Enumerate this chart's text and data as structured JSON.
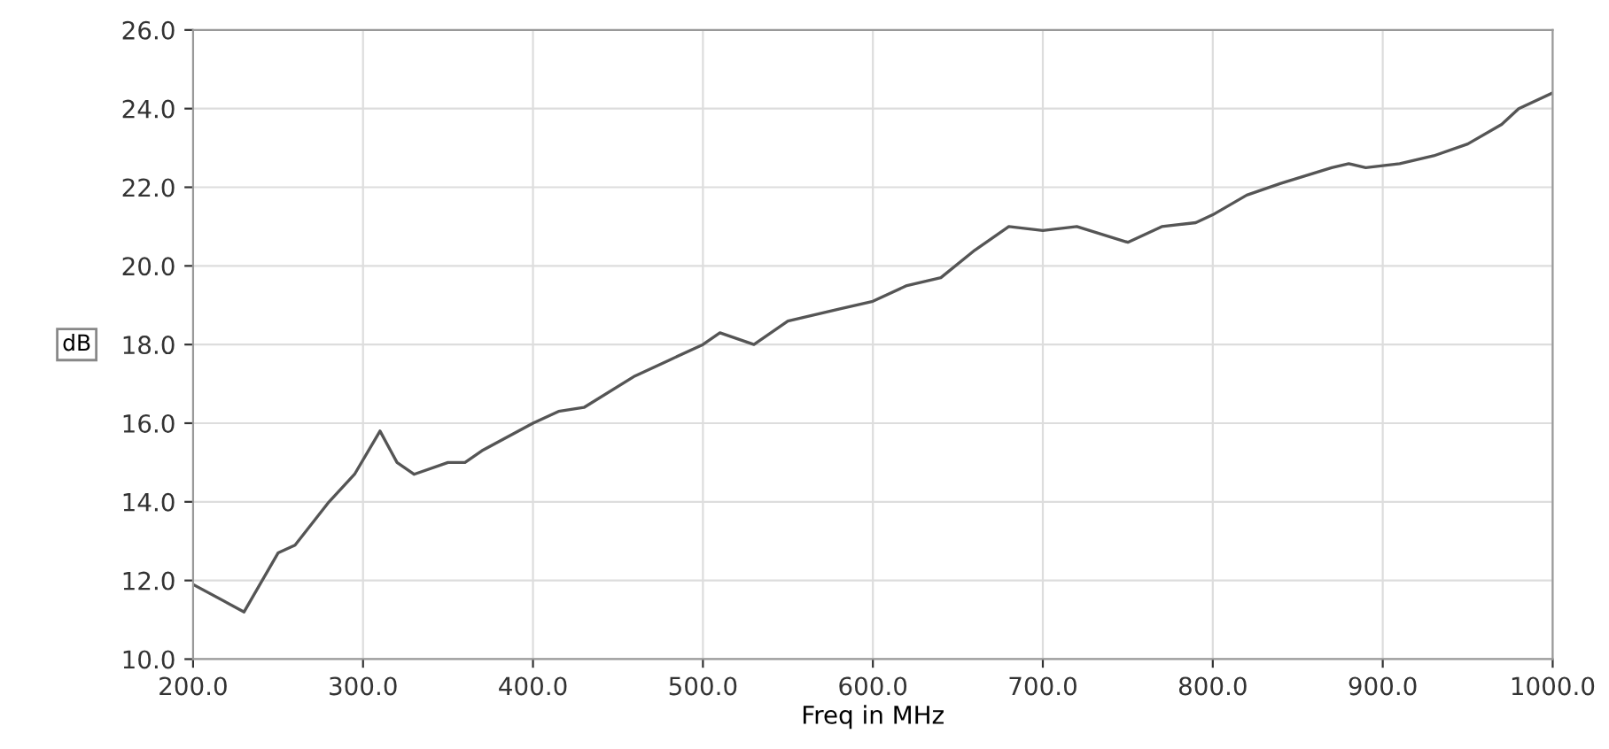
{
  "chart_data": {
    "type": "line",
    "xlabel": "Freq in MHz",
    "ylabel": "dB",
    "x": [
      200,
      230,
      250,
      260,
      280,
      295,
      310,
      320,
      330,
      350,
      360,
      370,
      400,
      415,
      430,
      460,
      480,
      500,
      510,
      530,
      550,
      580,
      600,
      620,
      640,
      660,
      680,
      700,
      720,
      750,
      770,
      790,
      800,
      820,
      840,
      870,
      880,
      890,
      910,
      930,
      950,
      970,
      980,
      1000
    ],
    "series": [
      {
        "color": "#555555",
        "values": [
          11.9,
          11.2,
          12.7,
          12.9,
          14.0,
          14.7,
          15.8,
          15.0,
          14.7,
          15.0,
          15.0,
          15.3,
          16.0,
          16.3,
          16.4,
          17.2,
          17.6,
          18.0,
          18.3,
          18.0,
          18.6,
          18.9,
          19.1,
          19.5,
          19.7,
          20.4,
          21.0,
          20.9,
          21.0,
          20.6,
          21.0,
          21.1,
          21.3,
          21.8,
          22.1,
          22.5,
          22.6,
          22.5,
          22.6,
          22.8,
          23.1,
          23.6,
          24.0,
          24.4
        ]
      }
    ],
    "xlim": [
      200,
      1000
    ],
    "ylim": [
      10,
      26
    ],
    "xticks": [
      {
        "value": 200,
        "label": "200.0"
      },
      {
        "value": 300,
        "label": "300.0"
      },
      {
        "value": 400,
        "label": "400.0"
      },
      {
        "value": 500,
        "label": "500.0"
      },
      {
        "value": 600,
        "label": "600.0"
      },
      {
        "value": 700,
        "label": "700.0"
      },
      {
        "value": 800,
        "label": "800.0"
      },
      {
        "value": 900,
        "label": "900.0"
      },
      {
        "value": 1000,
        "label": "1000.0"
      }
    ],
    "yticks": [
      {
        "value": 10,
        "label": "10.0"
      },
      {
        "value": 12,
        "label": "12.0"
      },
      {
        "value": 14,
        "label": "14.0"
      },
      {
        "value": 16,
        "label": "16.0"
      },
      {
        "value": 18,
        "label": "18.0"
      },
      {
        "value": 20,
        "label": "20.0"
      },
      {
        "value": 22,
        "label": "22.0"
      },
      {
        "value": 24,
        "label": "24.0"
      },
      {
        "value": 26,
        "label": "26.0"
      }
    ],
    "grid": true,
    "legend": false
  }
}
